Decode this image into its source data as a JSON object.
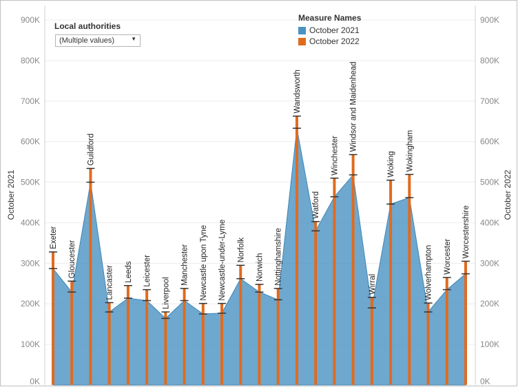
{
  "filter": {
    "title": "Local authorities",
    "value": "(Multiple values)"
  },
  "legend": {
    "title": "Measure Names",
    "items": [
      {
        "label": "October 2021",
        "color": "#4a92c2"
      },
      {
        "label": "October 2022",
        "color": "#e06b1f"
      }
    ]
  },
  "chart_data": {
    "type": "area",
    "xlabel": "",
    "ylabel_left": "October 2021",
    "ylabel_right": "October 2022",
    "ylim": [
      0,
      900000
    ],
    "yticks": [
      "0K",
      "100K",
      "200K",
      "300K",
      "400K",
      "500K",
      "600K",
      "700K",
      "800K",
      "900K"
    ],
    "grid": true,
    "legend_position": "top-center",
    "categories": [
      "Exeter",
      "Gloucester",
      "Guildford",
      "Lancaster",
      "Leeds",
      "Leicester",
      "Liverpool",
      "Manchester",
      "Newcastle upon Tyne",
      "Newcastle-under-Lyme",
      "Norfolk",
      "Norwich",
      "Nottinghamshire",
      "Wandsworth",
      "Watford",
      "Winchester",
      "Windsor and Maidenhead",
      "Wirral",
      "Woking",
      "Wokingham",
      "Wolverhampton",
      "Worcester",
      "Worcestershire"
    ],
    "series": [
      {
        "name": "October 2021",
        "color": "#4a92c2",
        "values": [
          287000,
          229000,
          500000,
          180000,
          214000,
          208000,
          164000,
          208000,
          175000,
          177000,
          262000,
          229000,
          210000,
          633000,
          380000,
          464000,
          518000,
          190000,
          446000,
          462000,
          180000,
          235000,
          274000
        ]
      },
      {
        "name": "October 2022",
        "color": "#e06b1f",
        "values": [
          328000,
          256000,
          534000,
          203000,
          245000,
          235000,
          180000,
          238000,
          201000,
          201000,
          295000,
          248000,
          238000,
          663000,
          403000,
          510000,
          568000,
          216000,
          505000,
          519000,
          202000,
          265000,
          305000
        ]
      }
    ]
  }
}
